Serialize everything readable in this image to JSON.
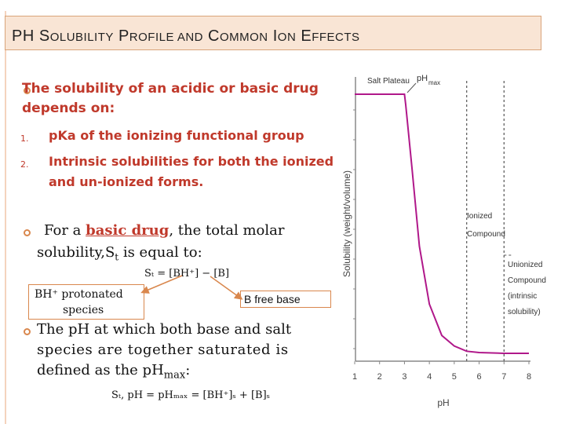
{
  "slide": {
    "title_parts": [
      {
        "big": "P",
        "small": ""
      },
      {
        "big": "H S",
        "small": "OLUBILITY"
      },
      {
        "big": " P",
        "small": "ROFILE AND"
      },
      {
        "big": " C",
        "small": "OMMON"
      },
      {
        "big": " I",
        "small": "ON"
      },
      {
        "big": " E",
        "small": "FFECTS"
      }
    ],
    "intro_line1": "The solubility of an acidic or basic drug",
    "intro_line2": "depends on:",
    "items": [
      {
        "num": "1.",
        "text": "pKa of the ionizing functional group"
      },
      {
        "num": "2.",
        "text": "Intrinsic solubilities for both the ionized",
        "text2": "and un-ionized forms."
      }
    ],
    "basic_p1": "For a ",
    "basic_p2": "basic drug",
    "basic_p3": ", the total molar",
    "basic_line2": "solubility,S",
    "basic_line2_sub": "t",
    "basic_line2_end": " is equal to:",
    "equation": "Sₜ = [BH⁺] − [B]",
    "box_left_line1": "BH⁺ protonated",
    "box_left_line2": "species",
    "box_right": "B free base",
    "phmax_line1": "The pH at which both base and salt",
    "phmax_line2": "species are together saturated is",
    "phmax_line3": "defined as the pH",
    "phmax_line3_sub": "max",
    "phmax_line3_end": ":",
    "equation2": "Sₜ, pH = pHₘₐₓ = [BH⁺]ₛ + [B]ₛ"
  },
  "chart_data": {
    "type": "line",
    "xlabel": "pH",
    "ylabel": "Solubility (weight/volume)",
    "x": [
      1,
      2,
      3,
      3.05,
      3.3,
      3.6,
      4.0,
      4.5,
      5.0,
      5.5,
      6.0,
      7.0,
      8.0
    ],
    "y": [
      1.0,
      1.0,
      1.0,
      0.96,
      0.72,
      0.42,
      0.2,
      0.08,
      0.04,
      0.02,
      0.015,
      0.012,
      0.012
    ],
    "xticks": [
      "1",
      "2",
      "3",
      "4",
      "5",
      "6",
      "7",
      "8"
    ],
    "xlim": [
      1,
      8
    ],
    "ylim": [
      0,
      1.1
    ],
    "annotations": [
      {
        "text": "Salt Plateau"
      },
      {
        "text": "pH",
        "sub": "max"
      },
      {
        "text": "Ionized",
        "text2": "Compound"
      },
      {
        "text": "Unionized",
        "text2": "Compound",
        "text3": "(intrinsic",
        "text4": "solubility)"
      }
    ],
    "colors": {
      "line": "#b0188a",
      "plateau": "#9b5ab0",
      "dashed": "#555555"
    }
  }
}
